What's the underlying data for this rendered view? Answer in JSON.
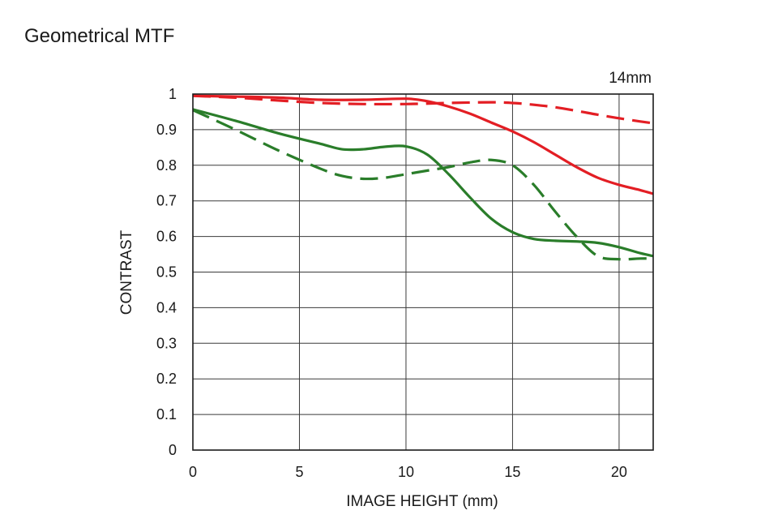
{
  "page": {
    "title": "Geometrical MTF"
  },
  "chart_data": {
    "type": "line",
    "title": "Geometrical MTF",
    "annotation": "14mm",
    "xlabel": "IMAGE HEIGHT (mm)",
    "ylabel": "CONTRAST",
    "xlim": [
      0,
      21.6
    ],
    "ylim": [
      0,
      1
    ],
    "xticks": [
      0,
      5,
      10,
      15,
      20
    ],
    "yticks": [
      0,
      0.1,
      0.2,
      0.3,
      0.4,
      0.5,
      0.6,
      0.7,
      0.8,
      0.9,
      1
    ],
    "ytick_labels": [
      "0",
      "0.1",
      "0.2",
      "0.3",
      "0.4",
      "0.5",
      "0.6",
      "0.7",
      "0.8",
      "0.9",
      "1"
    ],
    "xtick_labels": [
      "0",
      "5",
      "10",
      "15",
      "20"
    ],
    "grid": true,
    "series": [
      {
        "color": "#e31e24",
        "style": "solid",
        "x": [
          0,
          2,
          4,
          6,
          8,
          10,
          11,
          12,
          13,
          14,
          15,
          16,
          17,
          18,
          19,
          20,
          21,
          21.6
        ],
        "y": [
          0.995,
          0.993,
          0.99,
          0.984,
          0.984,
          0.987,
          0.98,
          0.965,
          0.945,
          0.92,
          0.895,
          0.865,
          0.83,
          0.795,
          0.765,
          0.745,
          0.73,
          0.72
        ]
      },
      {
        "color": "#e31e24",
        "style": "dashed",
        "x": [
          0,
          2,
          4,
          6,
          8,
          10,
          12,
          14,
          15,
          16,
          17,
          18,
          19,
          20,
          21,
          21.6
        ],
        "y": [
          0.995,
          0.99,
          0.982,
          0.975,
          0.972,
          0.972,
          0.975,
          0.977,
          0.975,
          0.97,
          0.963,
          0.953,
          0.942,
          0.932,
          0.923,
          0.918
        ]
      },
      {
        "color": "#2a7d2a",
        "style": "solid",
        "x": [
          0,
          2,
          4,
          6,
          7,
          8,
          9,
          10,
          11,
          12,
          13,
          14,
          15,
          16,
          17,
          18,
          19,
          20,
          21,
          21.6
        ],
        "y": [
          0.957,
          0.925,
          0.89,
          0.86,
          0.845,
          0.845,
          0.852,
          0.853,
          0.83,
          0.775,
          0.71,
          0.65,
          0.612,
          0.593,
          0.588,
          0.586,
          0.582,
          0.57,
          0.553,
          0.545
        ]
      },
      {
        "color": "#2a7d2a",
        "style": "dashed",
        "x": [
          0,
          2,
          4,
          6,
          7,
          8,
          9,
          10,
          11,
          12,
          13,
          14,
          15,
          16,
          17,
          18,
          19,
          20,
          21,
          21.6
        ],
        "y": [
          0.955,
          0.9,
          0.842,
          0.79,
          0.77,
          0.762,
          0.765,
          0.775,
          0.785,
          0.795,
          0.808,
          0.815,
          0.8,
          0.745,
          0.67,
          0.6,
          0.545,
          0.536,
          0.538,
          0.538
        ]
      }
    ]
  }
}
